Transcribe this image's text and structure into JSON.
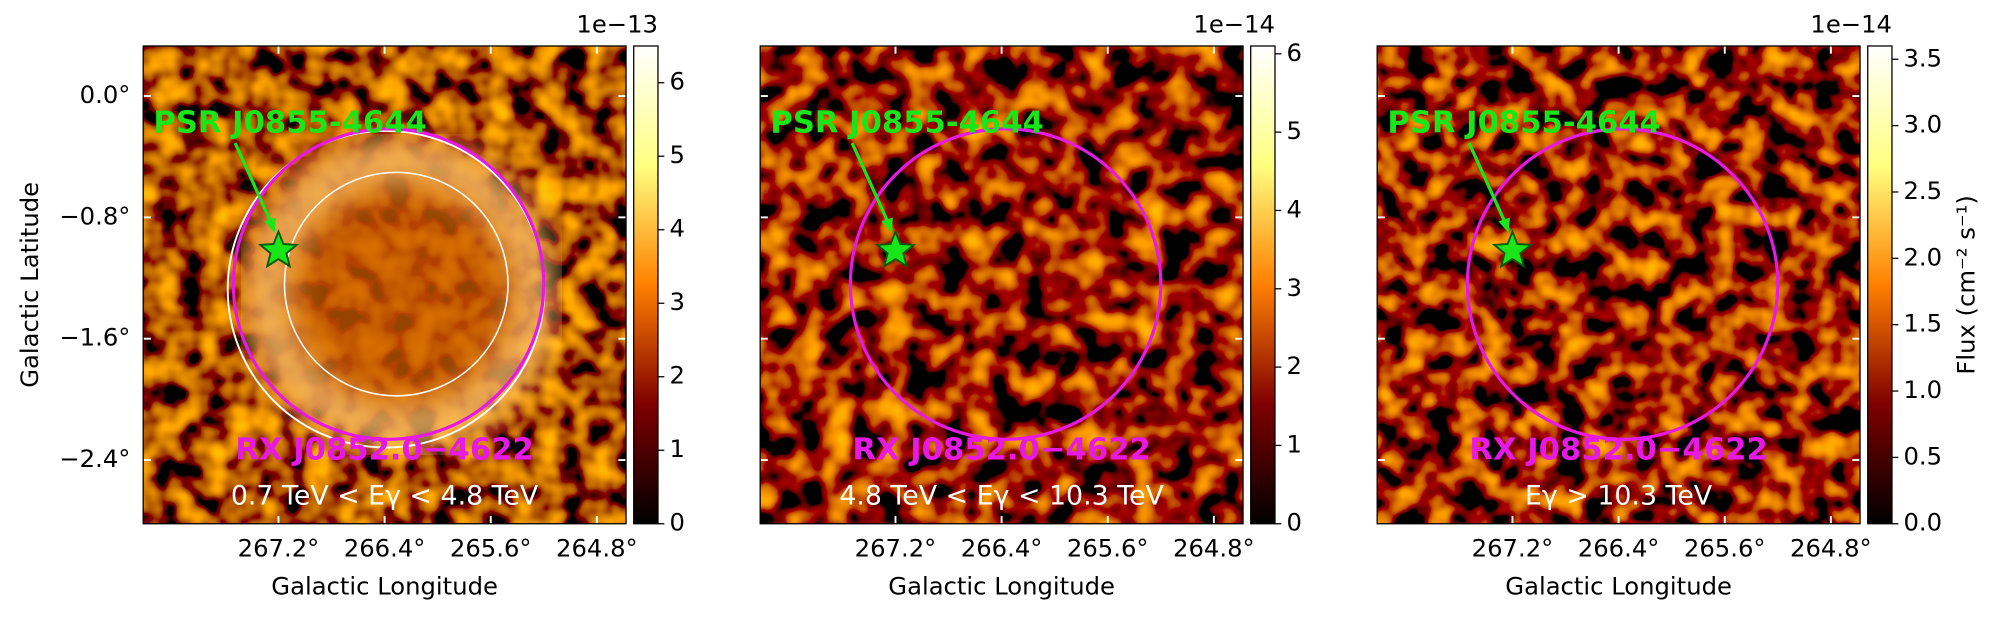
{
  "chart_data": [
    {
      "type": "heatmap",
      "xlabel": "Galactic Longitude",
      "ylabel": "Galactic Latitude",
      "xlim": [
        268.22,
        264.58
      ],
      "ylim": [
        -2.82,
        0.33
      ],
      "xticks": [
        {
          "value": 267.2,
          "label": "267.2°"
        },
        {
          "value": 266.4,
          "label": "266.4°"
        },
        {
          "value": 265.6,
          "label": "265.6°"
        },
        {
          "value": 264.8,
          "label": "264.8°"
        }
      ],
      "yticks": [
        {
          "value": 0,
          "label": "0.0°"
        },
        {
          "value": -0.8,
          "label": "−0.8°"
        },
        {
          "value": -1.6,
          "label": "−1.6°"
        },
        {
          "value": -2.4,
          "label": "−2.4°"
        }
      ],
      "colorbar": {
        "offset": "1e−13",
        "lim": [
          0,
          6.5
        ],
        "ticks": [
          0,
          1,
          2,
          3,
          4,
          5,
          6
        ]
      },
      "source": {
        "label": "PSR J0855-4644",
        "x": 267.2,
        "y": -1.02
      },
      "region": {
        "label": "RX J0852.0−4622",
        "x": 266.37,
        "y": -1.24,
        "radius": 1.17
      },
      "energy_range": "0.7 TeV < Eγ < 4.8 TeV"
    },
    {
      "type": "heatmap",
      "xlabel": "Galactic Longitude",
      "xlim": [
        268.22,
        264.58
      ],
      "ylim": [
        -2.82,
        0.33
      ],
      "xticks": [
        {
          "value": 267.2,
          "label": "267.2°"
        },
        {
          "value": 266.4,
          "label": "266.4°"
        },
        {
          "value": 265.6,
          "label": "265.6°"
        },
        {
          "value": 264.8,
          "label": "264.8°"
        }
      ],
      "yticks": [
        0,
        -0.8,
        -1.6,
        -2.4
      ],
      "colorbar": {
        "offset": "1e−14",
        "lim": [
          0,
          6.1
        ],
        "ticks": [
          0,
          1,
          2,
          3,
          4,
          5,
          6
        ]
      },
      "source": {
        "label": "PSR J0855-4644",
        "x": 267.2,
        "y": -1.02
      },
      "region": {
        "label": "RX J0852.0−4622",
        "x": 266.37,
        "y": -1.24,
        "radius": 1.17
      },
      "energy_range": "4.8 TeV < Eγ < 10.3 TeV"
    },
    {
      "type": "heatmap",
      "xlabel": "Galactic Longitude",
      "xlim": [
        268.22,
        264.58
      ],
      "ylim": [
        -2.82,
        0.33
      ],
      "xticks": [
        {
          "value": 267.2,
          "label": "267.2°"
        },
        {
          "value": 266.4,
          "label": "266.4°"
        },
        {
          "value": 265.6,
          "label": "265.6°"
        },
        {
          "value": 264.8,
          "label": "264.8°"
        }
      ],
      "yticks": [
        0,
        -0.8,
        -1.6,
        -2.4
      ],
      "colorbar": {
        "label": "Flux (cm⁻² s⁻¹)",
        "offset": "1e−14",
        "lim": [
          0,
          3.6
        ],
        "ticks": [
          {
            "value": 0,
            "label": "0.0"
          },
          0.5,
          {
            "value": 1,
            "label": "1.0"
          },
          1.5,
          {
            "value": 2,
            "label": "2.0"
          },
          2.5,
          {
            "value": 3,
            "label": "3.0"
          },
          3.5
        ]
      },
      "source": {
        "label": "PSR J0855-4644",
        "x": 267.2,
        "y": -1.02
      },
      "region": {
        "label": "RX J0852.0−4622",
        "x": 266.37,
        "y": -1.24,
        "radius": 1.17
      },
      "energy_range": "Eγ > 10.3 TeV"
    }
  ]
}
